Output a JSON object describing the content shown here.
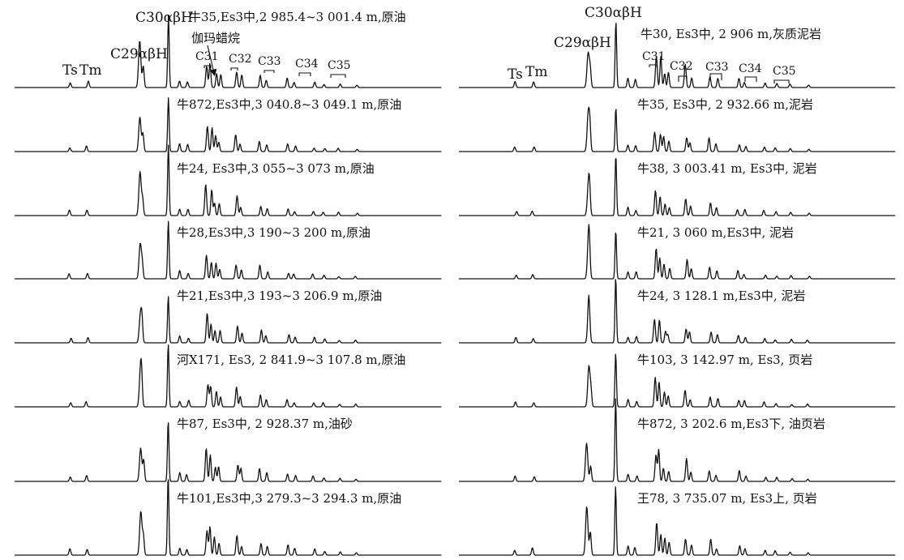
{
  "chart_data": {
    "type": "line",
    "series": [
      {
        "label": "牛35,Es3中,2 985.4~3 001.4 m,原油"
      },
      {
        "label": "牛872,Es3中,3 040.8~3 049.1 m,原油"
      },
      {
        "label": "牛24, Es3中,3 055~3 073 m,原油"
      },
      {
        "label": "牛28,Es3中,3 190~3 200 m,原油"
      },
      {
        "label": "牛21,Es3中,3 193~3 206.9 m,原油"
      },
      {
        "label": "河X171, Es3, 2 841.9~3 107.8 m,原油"
      },
      {
        "label": "牛87, Es3中, 2 928.37 m,油砂"
      },
      {
        "label": "牛101,Es3中,3 279.3~3 294.3 m,原油"
      },
      {
        "label": "牛30, Es3中, 2 906 m,灰质泥岩"
      },
      {
        "label": "牛35, Es3中, 2 932.66 m,泥岩"
      },
      {
        "label": "牛38, 3 003.41 m, Es3中, 泥岩"
      },
      {
        "label": "牛21, 3 060 m,Es3中, 泥岩"
      },
      {
        "label": "牛24, 3 128.1 m,Es3中, 泥岩"
      },
      {
        "label": "牛103, 3 142.97 m, Es3, 页岩"
      },
      {
        "label": "牛872, 3 202.6 m,Es3下, 油页岩"
      },
      {
        "label": "王78, 3 735.07 m, Es3上, 页岩"
      }
    ],
    "peak_labels": {
      "ts": "Ts",
      "tm": "Tm",
      "c29": "C29αβH",
      "c30": "C30αβH",
      "gammacerane": "伽玛蜡烷",
      "c31": "C31",
      "c32": "C32",
      "c33": "C33",
      "c34": "C34",
      "c35": "C35"
    }
  }
}
